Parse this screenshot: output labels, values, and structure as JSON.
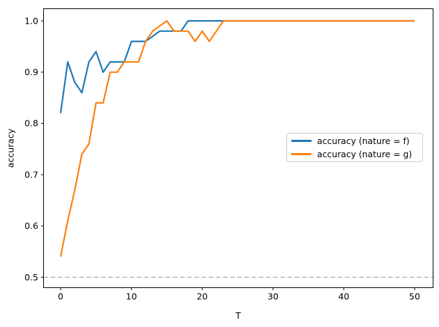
{
  "figure": {
    "background": "#ffffff"
  },
  "chart_data": {
    "type": "line",
    "title": "",
    "xlabel": "T",
    "ylabel": "accuracy",
    "grid": false,
    "xlim": [
      -2.5,
      52.5
    ],
    "ylim": [
      0.48,
      1.02
    ],
    "x_tick_values": [
      0,
      10,
      20,
      30,
      40,
      50
    ],
    "x_tick_labels": [
      "0",
      "10",
      "20",
      "30",
      "40",
      "50"
    ],
    "y_tick_values": [
      0.5,
      0.6,
      0.7,
      0.8,
      0.9,
      1.0
    ],
    "y_tick_labels": [
      "0.5",
      "0.6",
      "0.7",
      "0.8",
      "0.9",
      "1.0"
    ],
    "x": [
      0,
      1,
      2,
      3,
      4,
      5,
      6,
      7,
      8,
      9,
      10,
      11,
      12,
      13,
      14,
      15,
      16,
      17,
      18,
      19,
      20,
      21,
      22,
      23,
      24,
      25,
      26,
      27,
      28,
      29,
      30,
      31,
      32,
      33,
      34,
      35,
      36,
      37,
      38,
      39,
      40,
      41,
      42,
      43,
      44,
      45,
      46,
      47,
      48,
      49,
      50
    ],
    "series": [
      {
        "name": "accuracy (nature = f)",
        "color": "#1f77b4",
        "values": [
          0.82,
          0.92,
          0.88,
          0.86,
          0.92,
          0.94,
          0.9,
          0.92,
          0.92,
          0.92,
          0.96,
          0.96,
          0.96,
          0.97,
          0.98,
          0.98,
          0.98,
          0.98,
          1.0,
          1.0,
          1.0,
          1.0,
          1.0,
          1.0,
          1.0,
          1.0,
          1.0,
          1.0,
          1.0,
          1.0,
          1.0,
          1.0,
          1.0,
          1.0,
          1.0,
          1.0,
          1.0,
          1.0,
          1.0,
          1.0,
          1.0,
          1.0,
          1.0,
          1.0,
          1.0,
          1.0,
          1.0,
          1.0,
          1.0,
          1.0,
          1.0
        ]
      },
      {
        "name": "accuracy (nature = g)",
        "color": "#ff7f0e",
        "values": [
          0.54,
          0.61,
          0.67,
          0.74,
          0.76,
          0.84,
          0.84,
          0.9,
          0.9,
          0.92,
          0.92,
          0.92,
          0.96,
          0.98,
          0.99,
          1.0,
          0.98,
          0.98,
          0.98,
          0.96,
          0.98,
          0.96,
          0.98,
          1.0,
          1.0,
          1.0,
          1.0,
          1.0,
          1.0,
          1.0,
          1.0,
          1.0,
          1.0,
          1.0,
          1.0,
          1.0,
          1.0,
          1.0,
          1.0,
          1.0,
          1.0,
          1.0,
          1.0,
          1.0,
          1.0,
          1.0,
          1.0,
          1.0,
          1.0,
          1.0,
          1.0
        ]
      }
    ],
    "baseline": {
      "y": 0.5,
      "color": "#b3b3b3",
      "style": "dashed"
    },
    "legend": {
      "position": "center right",
      "entries": [
        "accuracy (nature = f)",
        "accuracy (nature = g)"
      ]
    }
  }
}
